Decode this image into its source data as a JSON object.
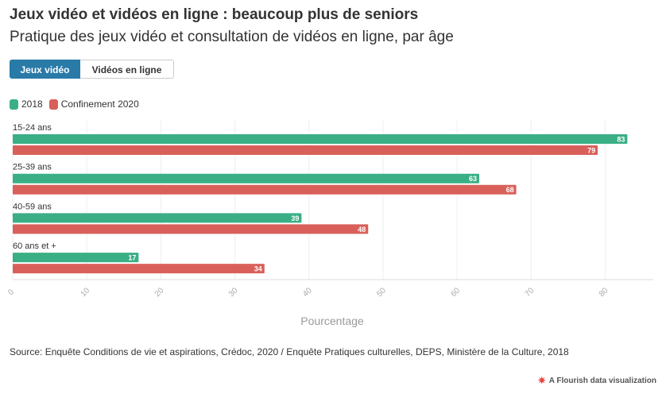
{
  "title": "Jeux vidéo et vidéos en ligne : beaucoup plus de seniors",
  "subtitle": "Pratique des jeux vidéo et consultation de vidéos en ligne, par âge",
  "tabs": [
    {
      "label": "Jeux vidéo",
      "active": true
    },
    {
      "label": "Vidéos en ligne",
      "active": false
    }
  ],
  "source": "Source: Enquête Conditions de vie et aspirations, Crédoc, 2020 / Enquête Pratiques culturelles, DEPS, Ministère de la Culture, 2018",
  "credit": "A Flourish data visualization",
  "colors": {
    "series_2018": "#3aaf85",
    "series_2020": "#d9605a",
    "active_tab": "#2a7aa8"
  },
  "chart_data": {
    "type": "bar",
    "orientation": "horizontal",
    "categories": [
      "15-24 ans",
      "25-39 ans",
      "40-59 ans",
      "60 ans et +"
    ],
    "series": [
      {
        "name": "2018",
        "values": [
          83,
          63,
          39,
          17
        ],
        "color": "#3aaf85"
      },
      {
        "name": "Confinement 2020",
        "values": [
          79,
          68,
          48,
          34
        ],
        "color": "#d9605a"
      }
    ],
    "xlabel": "Pourcentage",
    "xlim": [
      0,
      85
    ],
    "xticks": [
      0,
      10,
      20,
      30,
      40,
      50,
      60,
      70,
      80
    ],
    "legend_position": "top-left",
    "grid": true
  }
}
